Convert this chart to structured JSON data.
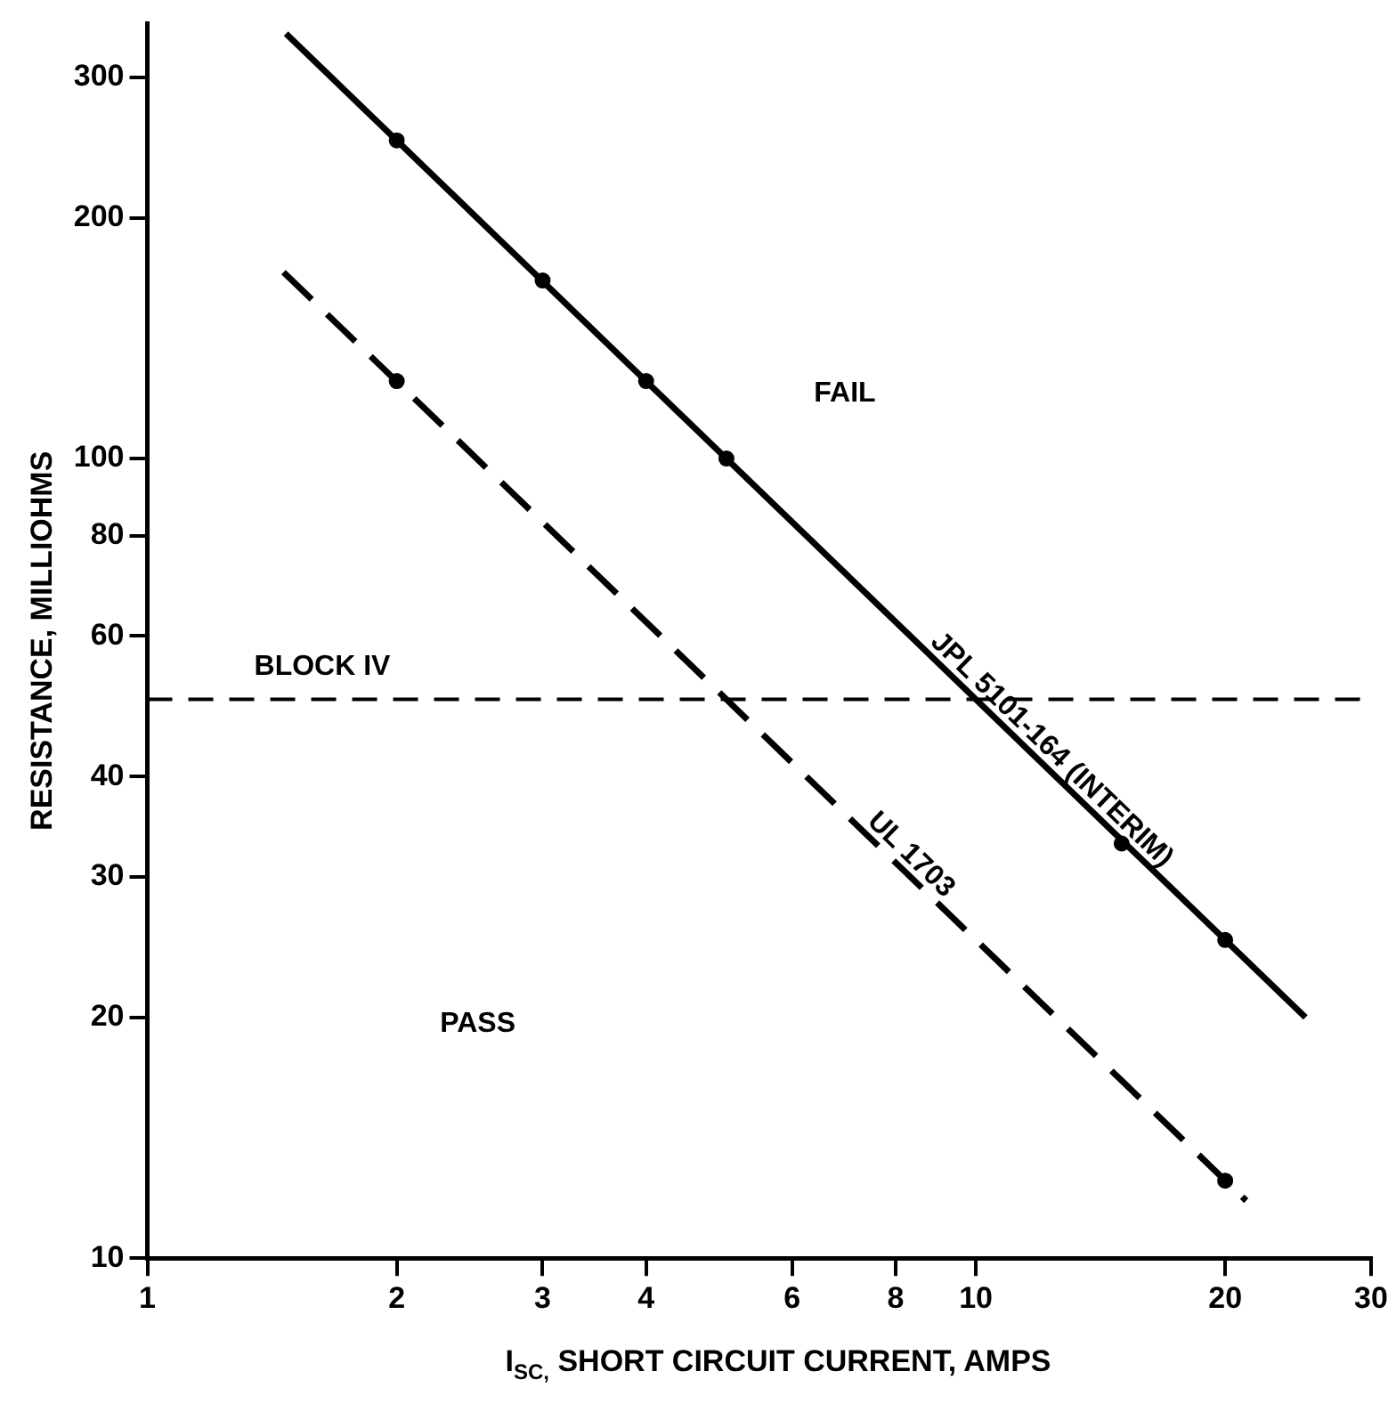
{
  "chart_data": {
    "type": "line",
    "xlabel": "I$_{SC,}$ SHORT CIRCUIT CURRENT, AMPS",
    "ylabel": "RESISTANCE, MILLIOHMS",
    "log": "xy",
    "grid": false,
    "legend": false,
    "xlim": [
      1,
      30
    ],
    "xticks": [
      1,
      2,
      3,
      4,
      6,
      8,
      10,
      20,
      30
    ],
    "ylim": [
      10,
      350
    ],
    "yticks": [
      10,
      20,
      30,
      40,
      60,
      80,
      100,
      200,
      300
    ],
    "series": [
      {
        "name": "JPL 5101-164 (INTERIM)",
        "color": "#000000",
        "line_style": "solid",
        "marker": "none",
        "x": [
          1.47,
          25
        ],
        "values": [
          340,
          20
        ]
      },
      {
        "name": "UL 1703",
        "color": "#000000",
        "line_style": "dashed",
        "marker": "none",
        "x": [
          1.46,
          21.2
        ],
        "values": [
          171,
          11.8
        ]
      },
      {
        "type": "scatter",
        "color": "#000000",
        "marker": "circle",
        "x": [
          2,
          3,
          4,
          5,
          15,
          20
        ],
        "values": [
          250,
          167,
          125,
          100,
          33,
          25
        ]
      },
      {
        "type": "scatter",
        "color": "#000000",
        "marker": "circle",
        "x": [
          2,
          20
        ],
        "values": [
          125,
          12.5
        ]
      }
    ],
    "ref_lines": [
      {
        "axis": "y",
        "value": 50,
        "label": "BLOCK IV",
        "color": "#000000",
        "line_style": "dashed"
      }
    ],
    "annotations": [
      "FAIL",
      "PASS"
    ]
  }
}
